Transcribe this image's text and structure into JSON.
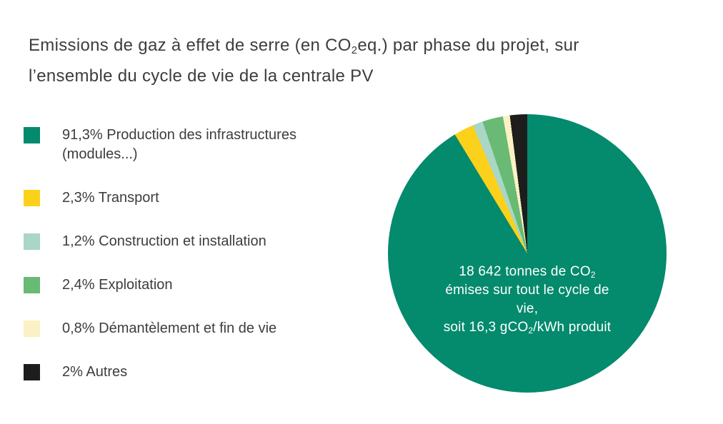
{
  "title": {
    "lines": [
      [
        {
          "t": "Emissions de gaz à effet de serre (en CO"
        },
        {
          "t": "2",
          "sub": true
        },
        {
          "t": "eq.) par phase du projet, sur"
        }
      ],
      [
        {
          "t": "l’ensemble du cycle de vie de la centrale PV"
        }
      ]
    ]
  },
  "legend": {
    "items": [
      {
        "label": "91,3% Production des infrastructures (modules...)",
        "color": "#048a6d"
      },
      {
        "label": "2,3% Transport",
        "color": "#fcd11b"
      },
      {
        "label": "1,2% Construction et installation",
        "color": "#a9d6c5"
      },
      {
        "label": "2,4% Exploitation",
        "color": "#68ba74"
      },
      {
        "label": "0,8% Démantèlement et fin de vie",
        "color": "#fbf1c5"
      },
      {
        "label": "2% Autres",
        "color": "#1d1d1b"
      }
    ]
  },
  "pie": {
    "center_lines": [
      [
        {
          "t": "18 642 tonnes de CO"
        },
        {
          "t": "2",
          "sub": true
        }
      ],
      [
        {
          "t": "émises sur tout le cycle de"
        }
      ],
      [
        {
          "t": "vie,"
        }
      ],
      [
        {
          "t": "soit 16,3 gCO"
        },
        {
          "t": "2",
          "sub": true
        },
        {
          "t": "/kWh produit"
        }
      ]
    ]
  },
  "chart_data": {
    "type": "pie",
    "title": "Emissions de gaz à effet de serre (en CO2eq.) par phase du projet, sur l’ensemble du cycle de vie de la centrale PV",
    "slices": [
      {
        "label": "Production des infrastructures (modules...)",
        "value_pct": 91.3,
        "color": "#048a6d"
      },
      {
        "label": "Transport",
        "value_pct": 2.3,
        "color": "#fcd11b"
      },
      {
        "label": "Construction et installation",
        "value_pct": 1.2,
        "color": "#a9d6c5"
      },
      {
        "label": "Exploitation",
        "value_pct": 2.4,
        "color": "#68ba74"
      },
      {
        "label": "Démantèlement et fin de vie",
        "value_pct": 0.8,
        "color": "#fbf1c5"
      },
      {
        "label": "Autres",
        "value_pct": 2,
        "color": "#1d1d1b"
      }
    ],
    "center_annotation": "18 642 tonnes de CO2 émises sur tout le cycle de vie, soit 16,3 gCO2/kWh produit",
    "start_angle_deg": 0,
    "direction": "clockwise",
    "legend_position": "left",
    "colors": {
      "background": "#ffffff",
      "title_text": "#3d3d3c",
      "legend_text": "#3d3d3c",
      "center_text": "#ffffff"
    }
  }
}
